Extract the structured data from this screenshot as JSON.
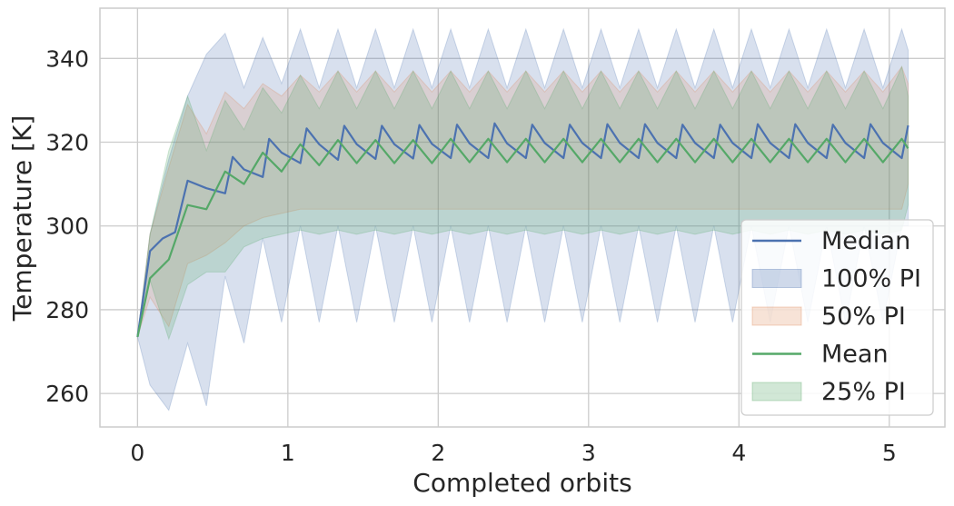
{
  "chart_data": {
    "type": "line",
    "xlabel": "Completed orbits",
    "ylabel": "Temperature [K]",
    "xlim": [
      -0.25,
      5.37
    ],
    "ylim": [
      252,
      352
    ],
    "xticks": [
      0,
      1,
      2,
      3,
      4,
      5
    ],
    "yticks": [
      260,
      280,
      300,
      320,
      340
    ],
    "grid": true,
    "legend_position": "lower-right",
    "legend": [
      "Median",
      "100% PI",
      "50% PI",
      "Mean",
      "25% PI"
    ],
    "series": [
      {
        "name": "Median",
        "kind": "line",
        "color": "#4c72b0",
        "x": [
          0,
          0.083,
          0.167,
          0.25,
          0.333,
          0.458,
          0.583,
          0.633,
          0.708,
          0.833,
          0.875,
          0.958,
          1.083,
          1.125,
          1.208,
          1.333,
          1.375,
          1.458,
          1.583,
          1.625,
          1.708,
          1.833,
          1.875,
          1.958,
          2.083,
          2.125,
          2.208,
          2.333,
          2.375,
          2.458,
          2.583,
          2.625,
          2.708,
          2.833,
          2.875,
          2.958,
          3.083,
          3.125,
          3.208,
          3.333,
          3.375,
          3.458,
          3.583,
          3.625,
          3.708,
          3.833,
          3.875,
          3.958,
          4.083,
          4.125,
          4.208,
          4.333,
          4.375,
          4.458,
          4.583,
          4.625,
          4.708,
          4.833,
          4.875,
          4.958,
          5.083,
          5.125
        ],
        "y": [
          273.5,
          294,
          297,
          298.5,
          310.8,
          309,
          307.8,
          316.5,
          313.5,
          311.7,
          320.8,
          317.5,
          315,
          323.3,
          319.5,
          315.8,
          323.9,
          319.5,
          316,
          323.9,
          319.5,
          316.1,
          324.1,
          319.6,
          316.2,
          324.2,
          319.7,
          316.2,
          324.5,
          319.7,
          316.2,
          324.2,
          319.8,
          316.2,
          324.2,
          319.8,
          316.2,
          324.3,
          319.8,
          316.2,
          324.3,
          319.8,
          316.2,
          324.2,
          319.8,
          316.2,
          324.2,
          319.8,
          316.2,
          324.3,
          319.8,
          316.2,
          324.3,
          319.8,
          316.2,
          324.2,
          319.8,
          316.2,
          324.3,
          319.8,
          316.2,
          324
        ]
      },
      {
        "name": "Mean",
        "kind": "line",
        "color": "#55a868",
        "x": [
          0,
          0.083,
          0.208,
          0.333,
          0.458,
          0.583,
          0.708,
          0.833,
          0.958,
          1.083,
          1.208,
          1.333,
          1.458,
          1.583,
          1.708,
          1.833,
          1.958,
          2.083,
          2.208,
          2.333,
          2.458,
          2.583,
          2.708,
          2.833,
          2.958,
          3.083,
          3.208,
          3.333,
          3.458,
          3.583,
          3.708,
          3.833,
          3.958,
          4.083,
          4.208,
          4.333,
          4.458,
          4.583,
          4.708,
          4.833,
          4.958,
          5.083,
          5.125
        ],
        "y": [
          273.5,
          287.5,
          292,
          305,
          304,
          313,
          310,
          317.5,
          313,
          319.5,
          314.5,
          320.5,
          315,
          320.5,
          315,
          320.5,
          315,
          320.8,
          315.2,
          320.8,
          315.2,
          320.8,
          315.2,
          320.8,
          315.2,
          320.8,
          315.2,
          320.8,
          315.2,
          320.8,
          315.2,
          320.8,
          315.2,
          320.8,
          315.2,
          320.8,
          315.2,
          320.8,
          315.2,
          320.8,
          315.2,
          320.8,
          318.5
        ]
      },
      {
        "name": "100% PI",
        "kind": "band",
        "color": "#4c72b0",
        "opacity": 0.22,
        "x": [
          0,
          0.083,
          0.208,
          0.333,
          0.458,
          0.583,
          0.708,
          0.833,
          0.958,
          1.083,
          1.208,
          1.333,
          1.458,
          1.583,
          1.708,
          1.833,
          1.958,
          2.083,
          2.208,
          2.333,
          2.458,
          2.583,
          2.708,
          2.833,
          2.958,
          3.083,
          3.208,
          3.333,
          3.458,
          3.583,
          3.708,
          3.833,
          3.958,
          4.083,
          4.208,
          4.333,
          4.458,
          4.583,
          4.708,
          4.833,
          4.958,
          5.083,
          5.125
        ],
        "lower": [
          273.5,
          262,
          256,
          272,
          257,
          288,
          272,
          297,
          277,
          300,
          277,
          300,
          277,
          300,
          277,
          300,
          277,
          300,
          277,
          300,
          277,
          300,
          277,
          300,
          277,
          300,
          277,
          300,
          277,
          300,
          277,
          300,
          277,
          300,
          277,
          300,
          277,
          300,
          277,
          300,
          277,
          300,
          300
        ],
        "upper": [
          273.5,
          298,
          316,
          331,
          341,
          346,
          333,
          345,
          334,
          347,
          333,
          347,
          333,
          347,
          333,
          347,
          333,
          347,
          333,
          347,
          333,
          347,
          333,
          347,
          333,
          347,
          333,
          347,
          333,
          347,
          333,
          347,
          333,
          347,
          333,
          347,
          333,
          347,
          333,
          347,
          333,
          347,
          342
        ]
      },
      {
        "name": "50% PI",
        "kind": "band",
        "color": "#dd8452",
        "opacity": 0.18,
        "x": [
          0,
          0.083,
          0.208,
          0.333,
          0.458,
          0.583,
          0.708,
          0.833,
          0.958,
          1.083,
          1.208,
          1.333,
          1.458,
          1.583,
          1.708,
          1.833,
          1.958,
          2.083,
          2.208,
          2.333,
          2.458,
          2.583,
          2.708,
          2.833,
          2.958,
          3.083,
          3.208,
          3.333,
          3.458,
          3.583,
          3.708,
          3.833,
          3.958,
          4.083,
          4.208,
          4.333,
          4.458,
          4.583,
          4.708,
          4.833,
          4.958,
          5.083,
          5.125
        ],
        "lower": [
          273.5,
          283,
          276,
          291,
          293,
          296,
          300,
          302,
          303,
          304,
          304,
          304,
          304,
          304,
          304,
          304,
          304,
          304,
          304,
          304,
          304,
          304,
          304,
          304,
          304,
          304,
          304,
          304,
          304,
          304,
          304,
          304,
          304,
          304,
          304,
          304,
          304,
          304,
          304,
          304,
          304,
          304,
          310
        ],
        "upper": [
          273.5,
          298,
          314,
          329,
          322,
          332,
          328,
          334,
          331,
          336,
          332,
          337,
          332,
          337,
          332,
          337,
          332,
          337,
          332,
          337,
          332,
          337,
          332,
          337,
          332,
          337,
          332,
          337,
          332,
          337,
          332,
          337,
          332,
          337,
          332,
          337,
          332,
          337,
          332,
          337,
          332,
          338,
          334
        ]
      },
      {
        "name": "25% PI",
        "kind": "band",
        "color": "#55a868",
        "opacity": 0.22,
        "x": [
          0,
          0.083,
          0.208,
          0.333,
          0.458,
          0.583,
          0.708,
          0.833,
          0.958,
          1.083,
          1.208,
          1.333,
          1.458,
          1.583,
          1.708,
          1.833,
          1.958,
          2.083,
          2.208,
          2.333,
          2.458,
          2.583,
          2.708,
          2.833,
          2.958,
          3.083,
          3.208,
          3.333,
          3.458,
          3.583,
          3.708,
          3.833,
          3.958,
          4.083,
          4.208,
          4.333,
          4.458,
          4.583,
          4.708,
          4.833,
          4.958,
          5.083,
          5.125
        ],
        "lower": [
          273.5,
          287,
          273,
          286,
          289,
          289,
          295,
          297,
          298,
          299,
          298,
          299,
          298,
          299,
          298,
          299,
          298,
          299,
          298,
          299,
          298,
          299,
          298,
          299,
          298,
          299,
          298,
          299,
          298,
          299,
          298,
          299,
          298,
          299,
          298,
          299,
          298,
          299,
          298,
          299,
          298,
          299,
          305
        ],
        "upper": [
          273.5,
          298,
          318,
          331,
          318,
          330,
          323,
          333,
          327,
          336,
          328,
          337,
          328,
          337,
          328,
          337,
          328,
          337,
          328,
          337,
          328,
          337,
          328,
          337,
          328,
          337,
          328,
          337,
          328,
          337,
          328,
          337,
          328,
          337,
          328,
          337,
          328,
          337,
          328,
          337,
          328,
          338,
          331
        ]
      }
    ]
  }
}
